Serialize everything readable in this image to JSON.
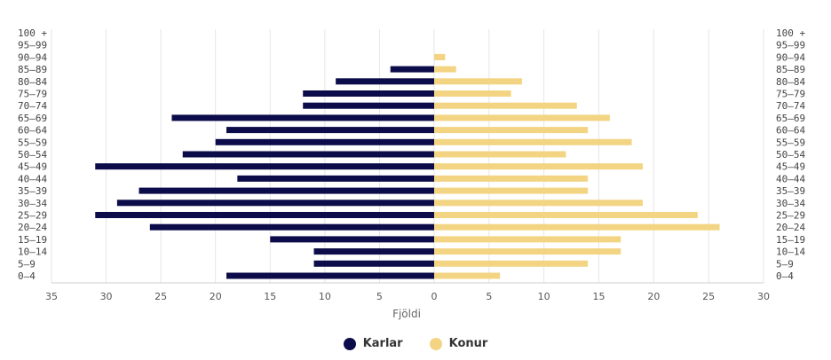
{
  "chart_data": {
    "type": "bar",
    "orientation": "horizontal-population-pyramid",
    "xlabel": "Fjöldi",
    "categories": [
      "0–4",
      "5–9",
      "10–14",
      "15–19",
      "20–24",
      "25–29",
      "30–34",
      "35–39",
      "40–44",
      "45–49",
      "50–54",
      "55–59",
      "60–64",
      "65–69",
      "70–74",
      "75–79",
      "80–84",
      "85–89",
      "90–94",
      "95–99",
      "100 +"
    ],
    "series": [
      {
        "name": "Karlar",
        "color": "#0c0c4a",
        "values": [
          19,
          11,
          11,
          15,
          26,
          31,
          29,
          27,
          18,
          31,
          23,
          20,
          19,
          24,
          12,
          12,
          9,
          4,
          0,
          0,
          0
        ]
      },
      {
        "name": "Konur",
        "color": "#f2d483",
        "values": [
          6,
          14,
          17,
          17,
          26,
          24,
          19,
          14,
          14,
          19,
          12,
          18,
          14,
          16,
          13,
          7,
          8,
          2,
          1,
          0,
          0
        ]
      }
    ],
    "xlim_left": [
      0,
      35
    ],
    "xlim_right": [
      0,
      30
    ],
    "left_ticks": [
      35,
      30,
      25,
      20,
      15,
      10,
      5,
      0
    ],
    "right_ticks": [
      5,
      10,
      15,
      20,
      25,
      30
    ],
    "grid": true,
    "legend_position": "bottom"
  }
}
